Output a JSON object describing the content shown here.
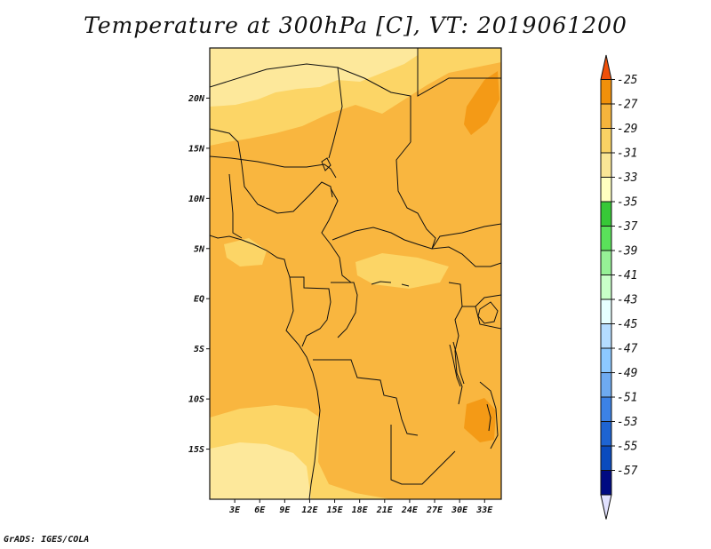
{
  "title": "Temperature at 300hPa [C], VT: 2019061200",
  "credit": "GrADS: IGES/COLA",
  "map": {
    "lon_range": [
      0,
      35
    ],
    "lat_range": [
      -20,
      25
    ],
    "lat_ticks": [
      {
        "value": 20,
        "label": "20N"
      },
      {
        "value": 15,
        "label": "15N"
      },
      {
        "value": 10,
        "label": "10N"
      },
      {
        "value": 5,
        "label": "5N"
      },
      {
        "value": 0,
        "label": "EQ"
      },
      {
        "value": -5,
        "label": "5S"
      },
      {
        "value": -10,
        "label": "10S"
      },
      {
        "value": -15,
        "label": "15S"
      }
    ],
    "lon_ticks": [
      {
        "value": 3,
        "label": "3E"
      },
      {
        "value": 6,
        "label": "6E"
      },
      {
        "value": 9,
        "label": "9E"
      },
      {
        "value": 12,
        "label": "12E"
      },
      {
        "value": 15,
        "label": "15E"
      },
      {
        "value": 18,
        "label": "18E"
      },
      {
        "value": 21,
        "label": "21E"
      },
      {
        "value": 24,
        "label": "24E"
      },
      {
        "value": 27,
        "label": "27E"
      },
      {
        "value": 30,
        "label": "30E"
      },
      {
        "value": 33,
        "label": "33E"
      }
    ]
  },
  "colorbar": {
    "labels": [
      "-25",
      "-27",
      "-29",
      "-31",
      "-33",
      "-35",
      "-37",
      "-39",
      "-41",
      "-43",
      "-45",
      "-47",
      "-49",
      "-51",
      "-53",
      "-55",
      "-57"
    ],
    "colors": [
      "#f0500a",
      "#f0900a",
      "#f5b43c",
      "#fad264",
      "#fae696",
      "#ffffc0",
      "#37c837",
      "#5ae15a",
      "#96f096",
      "#c8ffc8",
      "#e6ffff",
      "#b4dcff",
      "#8cc8ff",
      "#6eaaf0",
      "#3c82e6",
      "#1e64d2",
      "#0a4bbe",
      "#000a82",
      "#e1e1ff"
    ]
  }
}
